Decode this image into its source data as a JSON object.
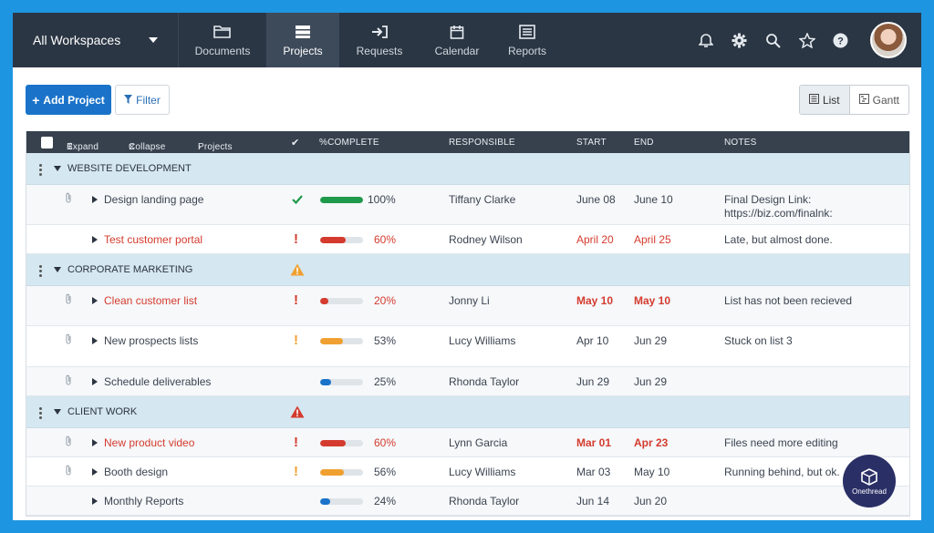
{
  "nav": {
    "workspace": "All Workspaces",
    "items": [
      {
        "label": "Documents",
        "icon": "folder-icon"
      },
      {
        "label": "Projects",
        "icon": "projects-icon",
        "active": true
      },
      {
        "label": "Requests",
        "icon": "request-icon"
      },
      {
        "label": "Calendar",
        "icon": "calendar-icon"
      },
      {
        "label": "Reports",
        "icon": "reports-icon"
      }
    ],
    "right_icons": [
      "bell-icon",
      "gear-icon",
      "search-icon",
      "star-icon",
      "help-icon"
    ]
  },
  "toolbar": {
    "add_label": "Add Project",
    "filter_label": "Filter",
    "view_list": "List",
    "view_gantt": "Gantt"
  },
  "table": {
    "header": {
      "expand": "Expand",
      "collapse": "Collapse",
      "projects": "Projects",
      "check": "✔",
      "complete": "%COMPLETE",
      "responsible": "RESPONSIBLE",
      "start": "START",
      "end": "END",
      "notes": "NOTES"
    },
    "groups": [
      {
        "name": "WEBSITE DEVELOPMENT",
        "warning": "",
        "rows": [
          {
            "task": "Design landing page",
            "status": "check",
            "percent": 100,
            "percent_label": "100%",
            "bar_color": "#1f9a4a",
            "responsible": "Tiffany Clarke",
            "start": "June 08",
            "end": "June 10",
            "notes": "Final Design Link:",
            "notes2": "https://biz.com/finalnk:",
            "late": false,
            "bold_dates": false,
            "clip": true
          },
          {
            "task": "Test customer portal",
            "status": "!",
            "percent": 60,
            "percent_label": "60%",
            "bar_color": "#d43b2e",
            "responsible": "Rodney Wilson",
            "start": "April 20",
            "end": "April 25",
            "notes": "Late, but almost done.",
            "notes2": "",
            "late": true,
            "bold_dates": false,
            "clip": false
          }
        ]
      },
      {
        "name": "CORPORATE MARKETING",
        "warning": "orange",
        "rows": [
          {
            "task": "Clean customer list",
            "status": "!",
            "percent": 20,
            "percent_label": "20%",
            "bar_color": "#d43b2e",
            "responsible": "Jonny Li",
            "start": "May 10",
            "end": "May 10",
            "notes": "List has not been recieved",
            "notes2": "",
            "late": true,
            "bold_dates": true,
            "clip": true
          },
          {
            "task": "New prospects lists",
            "status": "!o",
            "percent": 53,
            "percent_label": "53%",
            "bar_color": "#f0a030",
            "responsible": "Lucy Williams",
            "start": "Apr 10",
            "end": "Jun 29",
            "notes": "Stuck on list 3",
            "notes2": "",
            "late": false,
            "bold_dates": false,
            "clip": true
          },
          {
            "task": "Schedule deliverables",
            "status": "",
            "percent": 25,
            "percent_label": "25%",
            "bar_color": "#1a73c9",
            "responsible": "Rhonda Taylor",
            "start": "Jun 29",
            "end": "Jun 29",
            "notes": "",
            "notes2": "",
            "late": false,
            "bold_dates": false,
            "clip": true
          }
        ]
      },
      {
        "name": "CLIENT WORK",
        "warning": "red",
        "rows": [
          {
            "task": "New product video",
            "status": "!",
            "percent": 60,
            "percent_label": "60%",
            "bar_color": "#d43b2e",
            "responsible": "Lynn Garcia",
            "start": "Mar 01",
            "end": "Apr 23",
            "notes": "Files need more editing",
            "notes2": "",
            "late": true,
            "bold_dates": true,
            "clip": true
          },
          {
            "task": "Booth design",
            "status": "!o",
            "percent": 56,
            "percent_label": "56%",
            "bar_color": "#f0a030",
            "responsible": "Lucy Williams",
            "start": "Mar 03",
            "end": "May 10",
            "notes": "Running behind, but ok.",
            "notes2": "",
            "late": false,
            "bold_dates": false,
            "clip": true
          },
          {
            "task": "Monthly Reports",
            "status": "",
            "percent": 24,
            "percent_label": "24%",
            "bar_color": "#1a73c9",
            "responsible": "Rhonda Taylor",
            "start": "Jun 14",
            "end": "Jun 20",
            "notes": "",
            "notes2": "",
            "late": false,
            "bold_dates": false,
            "clip": false
          }
        ]
      }
    ]
  },
  "badge": {
    "label": "Onethread"
  }
}
